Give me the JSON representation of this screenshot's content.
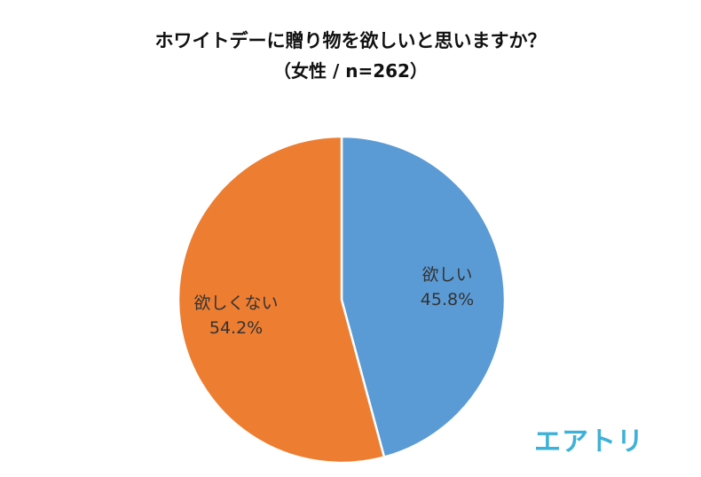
{
  "chart_data": {
    "type": "pie",
    "title": "ホワイトデーに贈り物を欲しいと思いますか？",
    "subtitle": "（女性 / n=262）",
    "slices": [
      {
        "label": "欲しい",
        "value": 45.8,
        "value_label": "45.8%",
        "color": "#5b9bd5"
      },
      {
        "label": "欲しくない",
        "value": 54.2,
        "value_label": "54.2%",
        "color": "#ed7d31"
      }
    ],
    "start_angle_deg": 0,
    "direction": "clockwise",
    "legend": "none"
  },
  "logo": {
    "text": "エアトリ",
    "color": "#3db1d8"
  }
}
